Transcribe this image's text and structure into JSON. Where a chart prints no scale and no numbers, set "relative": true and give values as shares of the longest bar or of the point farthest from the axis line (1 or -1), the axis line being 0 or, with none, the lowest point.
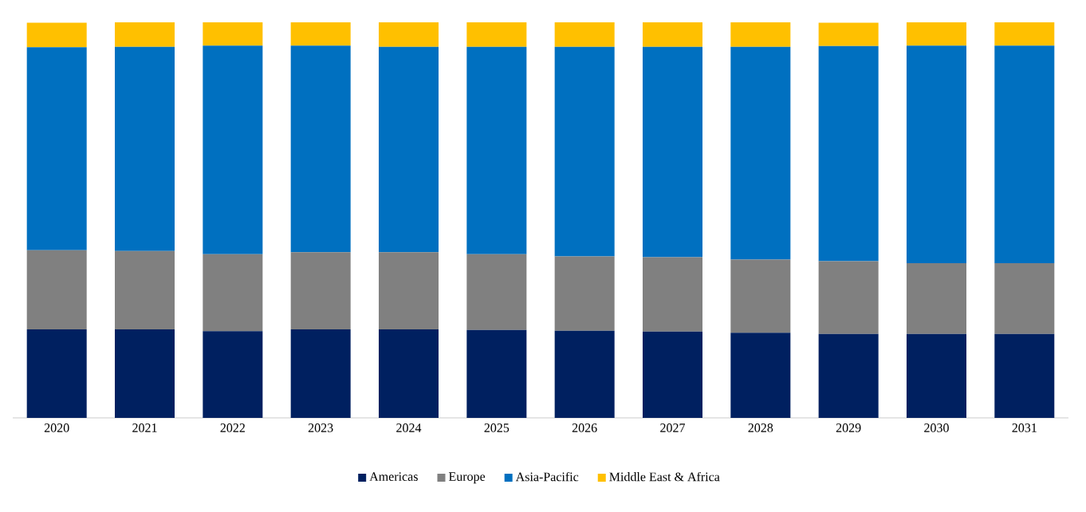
{
  "chart_data": {
    "type": "bar",
    "stacked": true,
    "relative": true,
    "legend": "bottom",
    "categories": [
      "2020",
      "2021",
      "2022",
      "2023",
      "2024",
      "2025",
      "2026",
      "2027",
      "2028",
      "2029",
      "2030",
      "2031"
    ],
    "series": [
      {
        "name": "Americas",
        "color": "#002060",
        "values": [
          0.224,
          0.224,
          0.219,
          0.224,
          0.224,
          0.222,
          0.22,
          0.218,
          0.215,
          0.212,
          0.212,
          0.212
        ]
      },
      {
        "name": "Europe",
        "color": "#808080",
        "values": [
          0.2,
          0.198,
          0.195,
          0.195,
          0.195,
          0.192,
          0.188,
          0.188,
          0.185,
          0.184,
          0.179,
          0.179
        ]
      },
      {
        "name": "Asia-Pacific",
        "color": "#0070c0",
        "values": [
          0.513,
          0.516,
          0.527,
          0.522,
          0.519,
          0.524,
          0.53,
          0.532,
          0.538,
          0.544,
          0.55,
          0.55
        ]
      },
      {
        "name": "Middle East & Africa",
        "color": "#ffc000",
        "values": [
          0.062,
          0.062,
          0.059,
          0.059,
          0.062,
          0.062,
          0.062,
          0.062,
          0.062,
          0.059,
          0.059,
          0.059
        ]
      }
    ]
  }
}
